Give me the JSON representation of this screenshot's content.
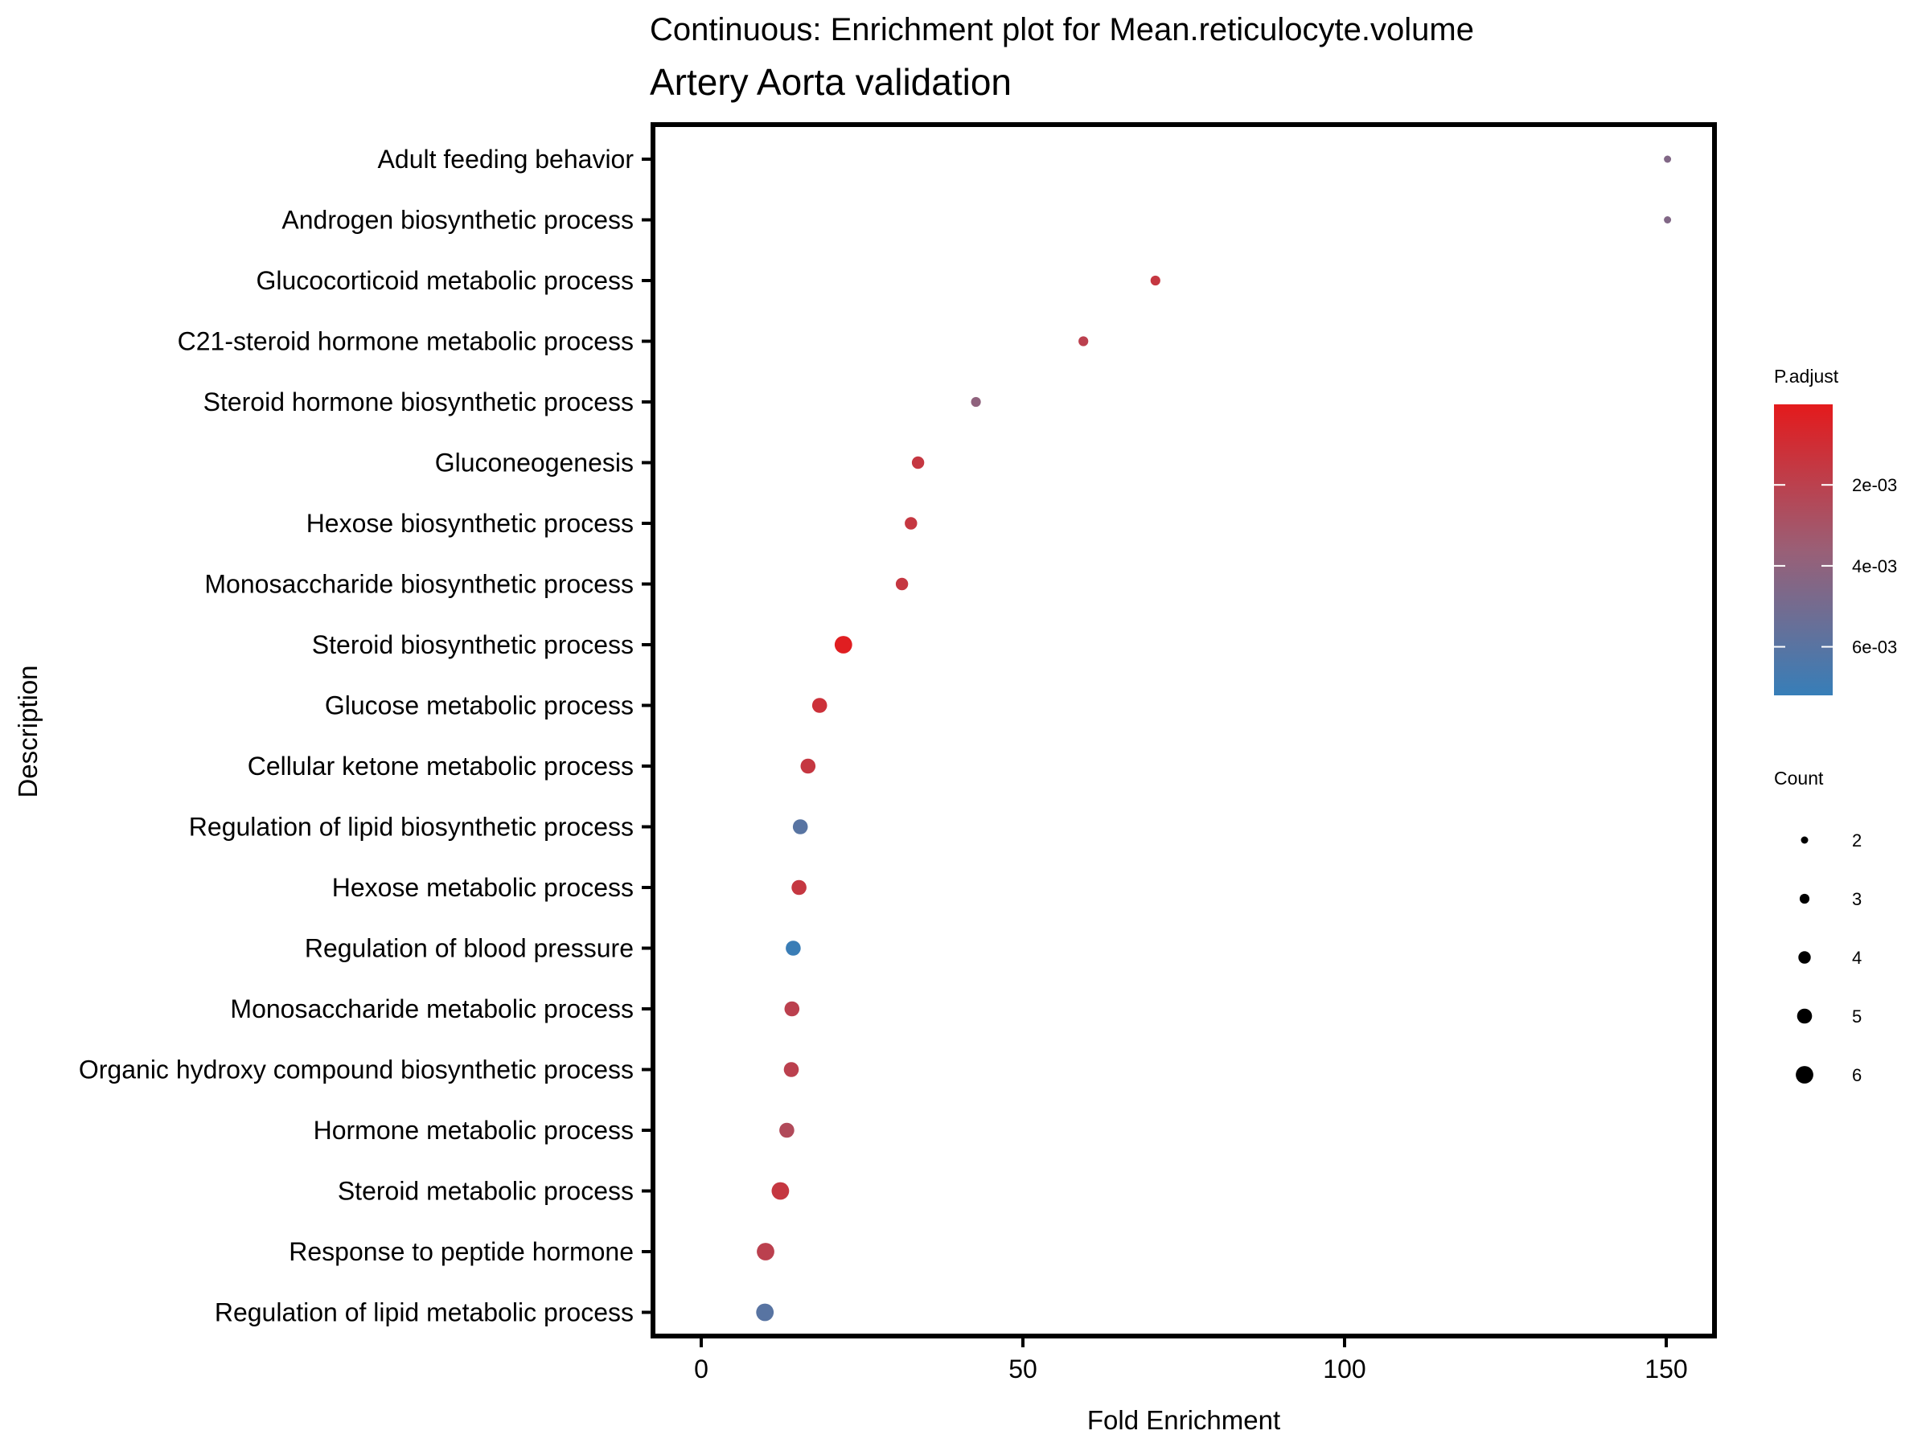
{
  "chart_data": {
    "type": "scatter",
    "title": "Continuous: Enrichment plot for Mean.reticulocyte.volume",
    "subtitle": "Artery Aorta validation",
    "xlabel": "Fold Enrichment",
    "ylabel": "Description",
    "xlim": [
      -7.5,
      157.5
    ],
    "x_ticks": [
      0,
      50,
      100,
      150
    ],
    "grid": false,
    "legend_position": "right",
    "color_legend": {
      "title": "P.adjust",
      "low_color": "#E41A1C",
      "high_color": "#377EB8",
      "domain": [
        1e-05,
        0.0072
      ],
      "ticks": [
        {
          "value": 0.002,
          "label": "2e-03"
        },
        {
          "value": 0.004,
          "label": "4e-03"
        },
        {
          "value": 0.006,
          "label": "6e-03"
        }
      ]
    },
    "size_legend": {
      "title": "Count",
      "values": [
        2,
        3,
        4,
        5,
        6
      ]
    },
    "points": [
      {
        "description": "Adult feeding behavior",
        "fold_enrichment": 150.2,
        "count": 2,
        "p_adjust": 0.0045
      },
      {
        "description": "Androgen biosynthetic process",
        "fold_enrichment": 150.2,
        "count": 2,
        "p_adjust": 0.0045
      },
      {
        "description": "Glucocorticoid metabolic process",
        "fold_enrichment": 70.6,
        "count": 3,
        "p_adjust": 0.0015
      },
      {
        "description": "C21-steroid hormone metabolic process",
        "fold_enrichment": 59.4,
        "count": 3,
        "p_adjust": 0.002
      },
      {
        "description": "Steroid hormone biosynthetic process",
        "fold_enrichment": 42.7,
        "count": 3,
        "p_adjust": 0.004
      },
      {
        "description": "Gluconeogenesis",
        "fold_enrichment": 33.7,
        "count": 4,
        "p_adjust": 0.0015
      },
      {
        "description": "Hexose biosynthetic process",
        "fold_enrichment": 32.6,
        "count": 4,
        "p_adjust": 0.0015
      },
      {
        "description": "Monosaccharide biosynthetic process",
        "fold_enrichment": 31.2,
        "count": 4,
        "p_adjust": 0.0015
      },
      {
        "description": "Steroid biosynthetic process",
        "fold_enrichment": 22.1,
        "count": 6,
        "p_adjust": 0.0002
      },
      {
        "description": "Glucose metabolic process",
        "fold_enrichment": 18.4,
        "count": 5,
        "p_adjust": 0.0012
      },
      {
        "description": "Cellular ketone metabolic process",
        "fold_enrichment": 16.6,
        "count": 5,
        "p_adjust": 0.0015
      },
      {
        "description": "Regulation of lipid biosynthetic process",
        "fold_enrichment": 15.4,
        "count": 5,
        "p_adjust": 0.006
      },
      {
        "description": "Hexose metabolic process",
        "fold_enrichment": 15.2,
        "count": 5,
        "p_adjust": 0.0015
      },
      {
        "description": "Regulation of blood pressure",
        "fold_enrichment": 14.3,
        "count": 5,
        "p_adjust": 0.0071
      },
      {
        "description": "Monosaccharide metabolic process",
        "fold_enrichment": 14.1,
        "count": 5,
        "p_adjust": 0.002
      },
      {
        "description": "Organic hydroxy compound biosynthetic process",
        "fold_enrichment": 14.0,
        "count": 5,
        "p_adjust": 0.002
      },
      {
        "description": "Hormone metabolic process",
        "fold_enrichment": 13.3,
        "count": 5,
        "p_adjust": 0.0025
      },
      {
        "description": "Steroid metabolic process",
        "fold_enrichment": 12.3,
        "count": 6,
        "p_adjust": 0.0015
      },
      {
        "description": "Response to peptide hormone",
        "fold_enrichment": 10.0,
        "count": 6,
        "p_adjust": 0.002
      },
      {
        "description": "Regulation of lipid metabolic process",
        "fold_enrichment": 9.9,
        "count": 6,
        "p_adjust": 0.006
      }
    ]
  }
}
